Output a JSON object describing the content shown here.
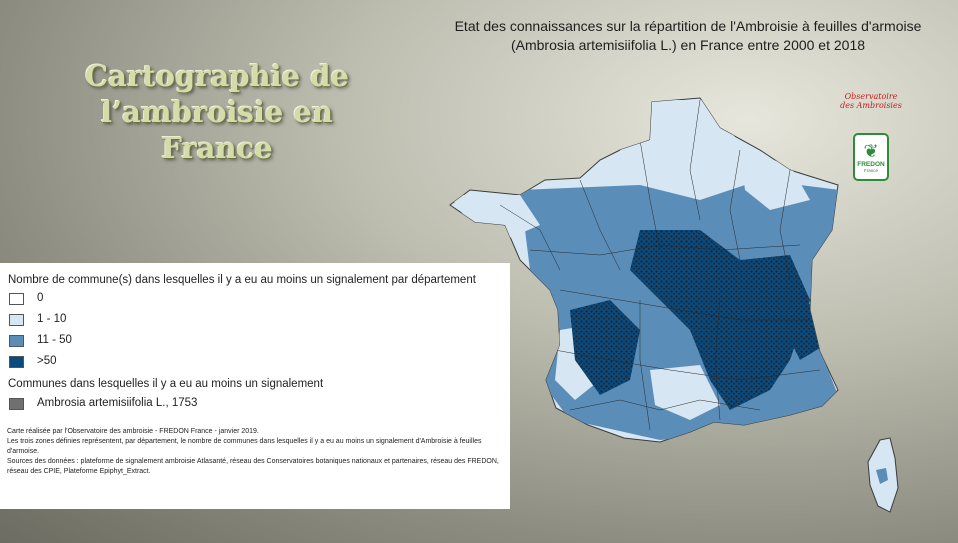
{
  "slide_title": "Cartographie de l’ambroisie en France",
  "map_title": "Etat des connaissances sur la répartition de l'Ambroisie à feuilles d'armoise (Ambrosia artemisiifolia L.) en France entre 2000 et 2018",
  "legend": {
    "heading": "Nombre de commune(s) dans lesquelles il y a eu au moins un signalement  par département",
    "classes": [
      {
        "label": "0",
        "color": "#ffffff"
      },
      {
        "label": "1 - 10",
        "color": "#d6e6f2"
      },
      {
        "label": "11 - 50",
        "color": "#5a8db8"
      },
      {
        "label": ">50",
        "color": "#0b4a7c"
      }
    ],
    "points_heading": "Communes dans lesquelles il y a eu au moins un signalement",
    "points_label": "Ambrosia artemisiifolia L., 1753",
    "points_color": "#707070"
  },
  "credits": {
    "line1": "Carte réalisée par l'Observatoire des ambroisie - FREDON France - janvier 2019.",
    "line2": "Les trois zones définies représentent, par département, le nombre de communes dans lesquelles il y a eu au moins un signalement d'Ambroisie à feuilles d'armoise.",
    "line3": "Sources des données : plateforme de signalement ambroisie Atlasanté, réseau des Conservatoires botaniques nationaux et partenaires, réseau des FREDON, réseau des CPIE, Plateforme Epiphyt_Extract."
  },
  "logos": {
    "observatoire": "Observatoire des Ambroisies",
    "fredon": "FREDON",
    "fredon_sub": "France"
  }
}
